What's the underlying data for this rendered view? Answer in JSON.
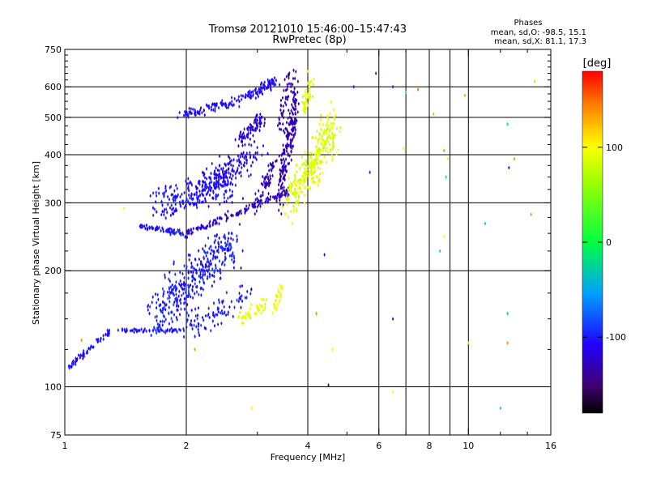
{
  "chart_data": {
    "type": "scatter",
    "title": "Tromsø 20121010 15:46:00–15:47:43",
    "subtitle": "RwPretec (8p)",
    "xlabel": "Frequency [MHz]",
    "ylabel": "Stationary phase Virtual Height [km]",
    "x_scale": "log",
    "y_scale": "log",
    "xlim": [
      1,
      16
    ],
    "ylim": [
      75,
      750
    ],
    "x_ticks": [
      1,
      2,
      4,
      6,
      8,
      10,
      16
    ],
    "x_tick_labels": [
      "1",
      "2",
      "4",
      "6",
      "8",
      "10",
      "16"
    ],
    "x_grid": [
      2,
      4,
      6,
      7,
      8,
      9,
      10
    ],
    "x_minor_ticks": [
      3,
      5,
      7,
      9,
      12,
      14
    ],
    "y_ticks": [
      75,
      100,
      200,
      300,
      400,
      500,
      600,
      750
    ],
    "y_tick_labels": [
      "75",
      "100",
      "200",
      "300",
      "400",
      "500",
      "600",
      "750"
    ],
    "y_minor_ticks": [
      125,
      150,
      175,
      225,
      250,
      275,
      325,
      350,
      375,
      425,
      450,
      475,
      525,
      550,
      575,
      625,
      650,
      675,
      700,
      725
    ],
    "grid": true,
    "phase_info": {
      "title": "Phases",
      "o_line": "mean, sd,O: -98.5, 15.1",
      "x_line": "mean, sd,X:  81.1, 17.3"
    },
    "colorbar": {
      "label": "[deg]",
      "range": [
        -180,
        180
      ],
      "ticks": [
        100,
        0,
        -100
      ],
      "tick_labels": [
        "100",
        "0",
        "-100"
      ],
      "placement": "right"
    },
    "traces": [
      {
        "name": "",
        "f": [
          1.02,
          1.3
        ],
        "h": [
          112,
          140
        ],
        "phase": [
          -110,
          -95
        ],
        "n": 70,
        "sf": 0.012,
        "sh": 0.018
      },
      {
        "name": "",
        "f": [
          1.3,
          1.95
        ],
        "h": [
          140,
          140
        ],
        "phase": [
          -110,
          -95
        ],
        "n": 50,
        "sf": 0.01,
        "sh": 0.012
      },
      {
        "name": "",
        "f": [
          1.65,
          2.6
        ],
        "h": [
          150,
          240
        ],
        "phase": [
          -115,
          -85
        ],
        "n": 380,
        "sf": 0.06,
        "sh": 0.14
      },
      {
        "name": "",
        "f": [
          2.0,
          2.9
        ],
        "h": [
          140,
          175
        ],
        "phase": [
          -110,
          -90
        ],
        "n": 90,
        "sf": 0.05,
        "sh": 0.07
      },
      {
        "name": "",
        "f": [
          2.7,
          3.15
        ],
        "h": [
          150,
          165
        ],
        "phase": [
          80,
          100
        ],
        "n": 40,
        "sf": 0.02,
        "sh": 0.04
      },
      {
        "name": "",
        "f": [
          3.3,
          3.45
        ],
        "h": [
          160,
          180
        ],
        "phase": [
          85,
          105
        ],
        "n": 35,
        "sf": 0.012,
        "sh": 0.04
      },
      {
        "name": "",
        "f": [
          1.55,
          2.0
        ],
        "h": [
          260,
          250
        ],
        "phase": [
          -110,
          -95
        ],
        "n": 70,
        "sf": 0.02,
        "sh": 0.015
      },
      {
        "name": "",
        "f": [
          2.0,
          3.6
        ],
        "h": [
          250,
          320
        ],
        "phase": [
          -115,
          -130
        ],
        "n": 140,
        "sf": 0.015,
        "sh": 0.02
      },
      {
        "name": "",
        "f": [
          1.7,
          2.6
        ],
        "h": [
          300,
          330
        ],
        "phase": [
          -110,
          -95
        ],
        "n": 220,
        "sf": 0.06,
        "sh": 0.09
      },
      {
        "name": "",
        "f": [
          2.2,
          3.0
        ],
        "h": [
          330,
          400
        ],
        "phase": [
          -115,
          -100
        ],
        "n": 150,
        "sf": 0.05,
        "sh": 0.08
      },
      {
        "name": "",
        "f": [
          2.7,
          3.1
        ],
        "h": [
          430,
          500
        ],
        "phase": [
          -130,
          -110
        ],
        "n": 80,
        "sf": 0.03,
        "sh": 0.05
      },
      {
        "name": "",
        "f": [
          3.4,
          3.75
        ],
        "h": [
          330,
          560
        ],
        "phase": [
          -140,
          -120
        ],
        "n": 200,
        "sf": 0.015,
        "sh": 0.2
      },
      {
        "name": "",
        "f": [
          3.0,
          3.3
        ],
        "h": [
          300,
          380
        ],
        "phase": [
          -135,
          -120
        ],
        "n": 60,
        "sf": 0.02,
        "sh": 0.08
      },
      {
        "name": "",
        "f": [
          1.95,
          2.7
        ],
        "h": [
          505,
          555
        ],
        "phase": [
          -110,
          -95
        ],
        "n": 90,
        "sf": 0.04,
        "sh": 0.025
      },
      {
        "name": "",
        "f": [
          2.8,
          3.3
        ],
        "h": [
          560,
          620
        ],
        "phase": [
          -115,
          -100
        ],
        "n": 80,
        "sf": 0.03,
        "sh": 0.03
      },
      {
        "name": "",
        "f": [
          3.4,
          3.6
        ],
        "h": [
          480,
          650
        ],
        "phase": [
          -140,
          -130
        ],
        "n": 40,
        "sf": 0.01,
        "sh": 0.08
      },
      {
        "name": "",
        "f": [
          3.6,
          4.7
        ],
        "h": [
          300,
          480
        ],
        "phase": [
          75,
          100
        ],
        "n": 300,
        "sf": 0.05,
        "sh": 0.12
      },
      {
        "name": "",
        "f": [
          3.9,
          4.1
        ],
        "h": [
          520,
          620
        ],
        "phase": [
          80,
          95
        ],
        "n": 40,
        "sf": 0.02,
        "sh": 0.06
      }
    ],
    "scatter_points": [
      {
        "f": 5.9,
        "h": 650,
        "phase": -100
      },
      {
        "f": 6.5,
        "h": 600,
        "phase": -100
      },
      {
        "f": 7.5,
        "h": 590,
        "phase": 150
      },
      {
        "f": 8.2,
        "h": 510,
        "phase": 130
      },
      {
        "f": 8.7,
        "h": 410,
        "phase": 140
      },
      {
        "f": 8.8,
        "h": 350,
        "phase": -10
      },
      {
        "f": 8.9,
        "h": 390,
        "phase": 90
      },
      {
        "f": 9.8,
        "h": 570,
        "phase": 130
      },
      {
        "f": 12.5,
        "h": 480,
        "phase": -10
      },
      {
        "f": 12.6,
        "h": 370,
        "phase": -110
      },
      {
        "f": 13.0,
        "h": 390,
        "phase": 140
      },
      {
        "f": 14.6,
        "h": 620,
        "phase": 120
      },
      {
        "f": 14.3,
        "h": 280,
        "phase": 140
      },
      {
        "f": 12.5,
        "h": 155,
        "phase": -20
      },
      {
        "f": 12.5,
        "h": 130,
        "phase": 140
      },
      {
        "f": 12.0,
        "h": 88,
        "phase": -20
      },
      {
        "f": 10.0,
        "h": 130,
        "phase": 110
      },
      {
        "f": 11.0,
        "h": 265,
        "phase": -20
      },
      {
        "f": 8.5,
        "h": 225,
        "phase": -20
      },
      {
        "f": 8.7,
        "h": 245,
        "phase": 100
      },
      {
        "f": 6.5,
        "h": 150,
        "phase": -110
      },
      {
        "f": 6.5,
        "h": 97,
        "phase": 100
      },
      {
        "f": 5.2,
        "h": 600,
        "phase": -100
      },
      {
        "f": 5.7,
        "h": 360,
        "phase": -100
      },
      {
        "f": 4.4,
        "h": 220,
        "phase": -110
      },
      {
        "f": 4.2,
        "h": 155,
        "phase": 140
      },
      {
        "f": 4.5,
        "h": 101,
        "phase": -110
      },
      {
        "f": 4.6,
        "h": 125,
        "phase": 100
      },
      {
        "f": 2.9,
        "h": 88,
        "phase": 100
      },
      {
        "f": 1.1,
        "h": 132,
        "phase": 140
      },
      {
        "f": 2.1,
        "h": 125,
        "phase": 140
      },
      {
        "f": 1.4,
        "h": 290,
        "phase": 100
      },
      {
        "f": 7.0,
        "h": 580,
        "phase": 0
      },
      {
        "f": 6.9,
        "h": 415,
        "phase": 100
      }
    ]
  }
}
